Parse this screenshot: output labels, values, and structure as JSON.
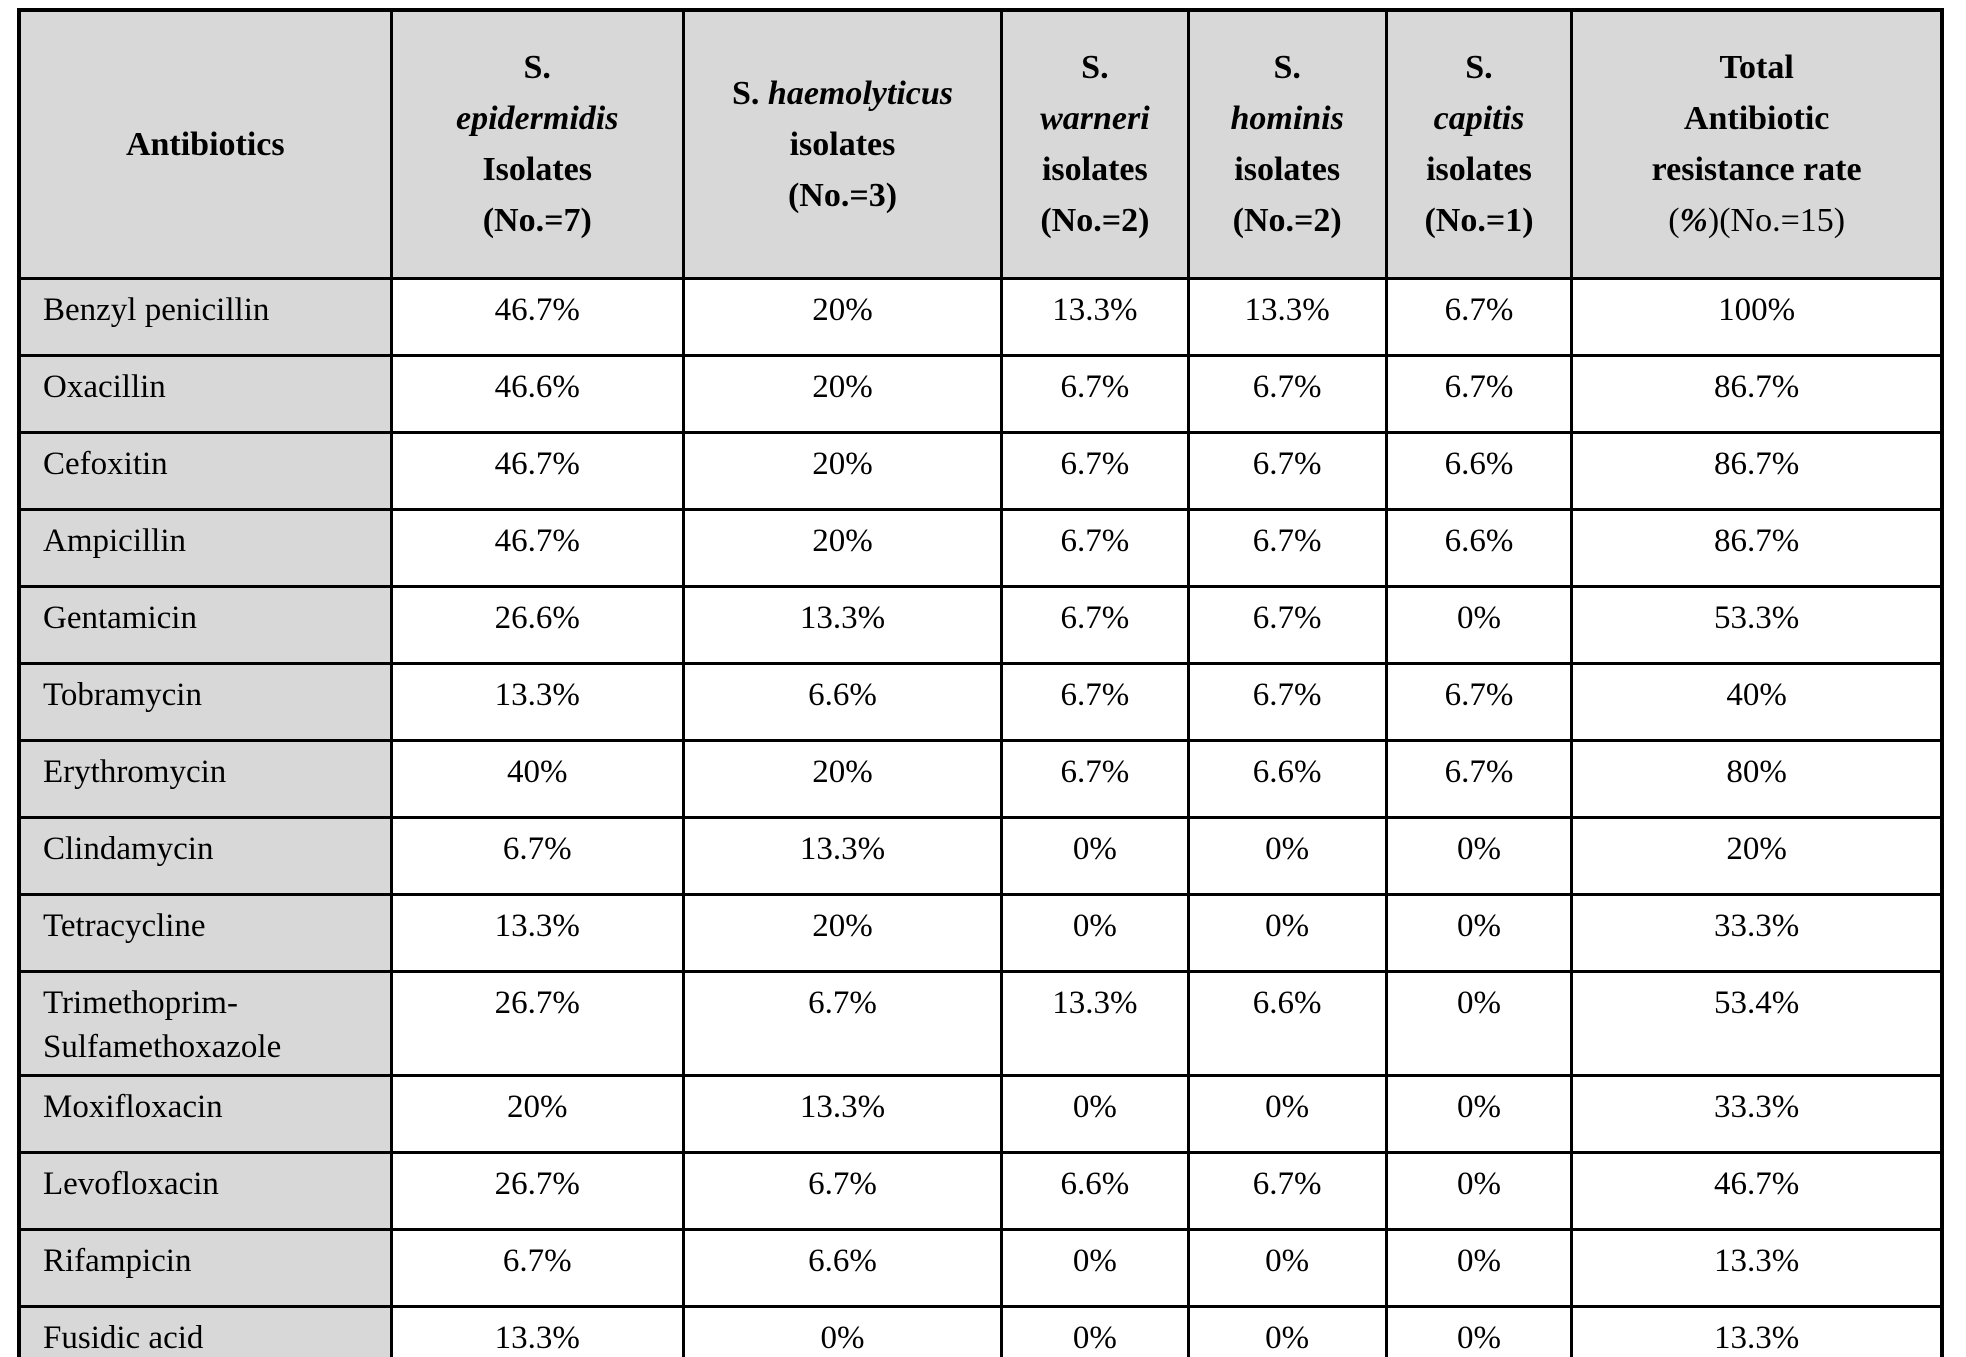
{
  "colors": {
    "header_bg": "#d8d8d8",
    "row_label_bg": "#d8d8d8",
    "cell_bg": "#ffffff",
    "border": "#000000",
    "text": "#000000"
  },
  "table": {
    "columns": [
      {
        "id": "antibiotics",
        "lines": [
          [
            {
              "t": "Antibiotics"
            }
          ]
        ]
      },
      {
        "id": "s-epidermidis",
        "lines": [
          [
            {
              "t": "S."
            }
          ],
          [
            {
              "t": "epidermidis",
              "i": true
            }
          ],
          [
            {
              "t": "Isolates"
            }
          ],
          [
            {
              "t": "(No.=7)"
            }
          ]
        ]
      },
      {
        "id": "s-haemolyticus",
        "lines": [
          [
            {
              "t": "S. "
            },
            {
              "t": "haemolyticus",
              "i": true
            }
          ],
          [
            {
              "t": "isolates"
            }
          ],
          [
            {
              "t": "(No.=3)"
            }
          ]
        ]
      },
      {
        "id": "s-warneri",
        "lines": [
          [
            {
              "t": "S."
            }
          ],
          [
            {
              "t": "warneri",
              "i": true
            }
          ],
          [
            {
              "t": "isolates"
            }
          ],
          [
            {
              "t": "(No.=2)"
            }
          ]
        ]
      },
      {
        "id": "s-hominis",
        "lines": [
          [
            {
              "t": "S."
            }
          ],
          [
            {
              "t": "hominis",
              "i": true
            }
          ],
          [
            {
              "t": "isolates"
            }
          ],
          [
            {
              "t": "(No.=2)"
            }
          ]
        ]
      },
      {
        "id": "s-capitis",
        "lines": [
          [
            {
              "t": "S."
            }
          ],
          [
            {
              "t": "capitis",
              "i": true
            }
          ],
          [
            {
              "t": "isolates"
            }
          ],
          [
            {
              "t": "(No.=1)"
            }
          ]
        ]
      },
      {
        "id": "total-resistance",
        "lines": [
          [
            {
              "t": "Total"
            }
          ],
          [
            {
              "t": "Antibiotic"
            }
          ],
          [
            {
              "t": "resistance rate"
            }
          ],
          [
            {
              "t": "(",
              "n": true
            },
            {
              "t": "%",
              "i": true
            },
            {
              "t": ")",
              "n": true
            },
            {
              "t": "(No.=15)",
              "n": true
            }
          ]
        ]
      }
    ],
    "rows": [
      {
        "antibiotic": "Benzyl penicillin",
        "values": [
          "46.7%",
          "20%",
          "13.3%",
          "13.3%",
          "6.7%",
          "100%"
        ]
      },
      {
        "antibiotic": "Oxacillin",
        "values": [
          "46.6%",
          "20%",
          "6.7%",
          "6.7%",
          "6.7%",
          "86.7%"
        ]
      },
      {
        "antibiotic": "Cefoxitin",
        "values": [
          "46.7%",
          "20%",
          "6.7%",
          "6.7%",
          "6.6%",
          "86.7%"
        ]
      },
      {
        "antibiotic": "Ampicillin",
        "values": [
          "46.7%",
          "20%",
          "6.7%",
          "6.7%",
          "6.6%",
          "86.7%"
        ]
      },
      {
        "antibiotic": "Gentamicin",
        "values": [
          "26.6%",
          "13.3%",
          "6.7%",
          "6.7%",
          "0%",
          "53.3%"
        ]
      },
      {
        "antibiotic": "Tobramycin",
        "values": [
          "13.3%",
          "6.6%",
          "6.7%",
          "6.7%",
          "6.7%",
          "40%"
        ]
      },
      {
        "antibiotic": "Erythromycin",
        "values": [
          "40%",
          "20%",
          "6.7%",
          "6.6%",
          "6.7%",
          "80%"
        ]
      },
      {
        "antibiotic": "Clindamycin",
        "values": [
          "6.7%",
          "13.3%",
          "0%",
          "0%",
          "0%",
          "20%"
        ]
      },
      {
        "antibiotic": "Tetracycline",
        "values": [
          "13.3%",
          "20%",
          "0%",
          "0%",
          "0%",
          "33.3%"
        ]
      },
      {
        "antibiotic": "Trimethoprim-Sulfamethoxazole",
        "values": [
          "26.7%",
          "6.7%",
          "13.3%",
          "6.6%",
          "0%",
          "53.4%"
        ]
      },
      {
        "antibiotic": "Moxifloxacin",
        "values": [
          "20%",
          "13.3%",
          "0%",
          "0%",
          "0%",
          "33.3%"
        ]
      },
      {
        "antibiotic": "Levofloxacin",
        "values": [
          "26.7%",
          "6.7%",
          "6.6%",
          "6.7%",
          "0%",
          "46.7%"
        ]
      },
      {
        "antibiotic": "Rifampicin",
        "values": [
          "6.7%",
          "6.6%",
          "0%",
          "0%",
          "0%",
          "13.3%"
        ]
      },
      {
        "antibiotic": "Fusidic acid",
        "values": [
          "13.3%",
          "0%",
          "0%",
          "0%",
          "0%",
          "13.3%"
        ]
      }
    ]
  }
}
